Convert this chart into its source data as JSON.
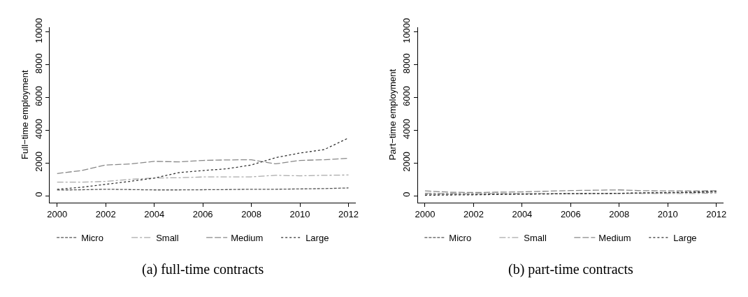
{
  "chart_data": [
    {
      "type": "line",
      "title": "(a) full-time contracts",
      "ylabel": "Full−time employment",
      "x": [
        2000,
        2001,
        2002,
        2003,
        2004,
        2005,
        2006,
        2007,
        2008,
        2009,
        2010,
        2011,
        2012
      ],
      "xlim": [
        1999.7,
        2012.3
      ],
      "ylim": [
        -400,
        10300
      ],
      "xticks": [
        2000,
        2002,
        2004,
        2006,
        2008,
        2010,
        2012
      ],
      "yticks": [
        0,
        2000,
        4000,
        6000,
        8000,
        10000
      ],
      "legend": "bottom",
      "marker": "none",
      "series": [
        {
          "name": "Micro",
          "color": "#555555",
          "line_style": "dashed",
          "values": [
            350,
            370,
            400,
            380,
            360,
            360,
            370,
            380,
            400,
            400,
            420,
            440,
            480
          ]
        },
        {
          "name": "Small",
          "color": "#aaaaaa",
          "line_style": "dashdot",
          "values": [
            830,
            830,
            880,
            1000,
            1090,
            1100,
            1150,
            1150,
            1160,
            1250,
            1220,
            1250,
            1270
          ]
        },
        {
          "name": "Medium",
          "color": "#888888",
          "line_style": "longdash",
          "values": [
            1360,
            1540,
            1880,
            1940,
            2100,
            2070,
            2160,
            2190,
            2200,
            1950,
            2160,
            2200,
            2290
          ]
        },
        {
          "name": "Large",
          "color": "#333333",
          "line_style": "dotted",
          "values": [
            400,
            520,
            700,
            880,
            1080,
            1410,
            1540,
            1650,
            1880,
            2330,
            2610,
            2820,
            3530
          ]
        }
      ]
    },
    {
      "type": "line",
      "title": "(b) part-time contracts",
      "ylabel": "Part−time employment",
      "x": [
        2000,
        2001,
        2002,
        2003,
        2004,
        2005,
        2006,
        2007,
        2008,
        2009,
        2010,
        2011,
        2012
      ],
      "xlim": [
        1999.7,
        2012.3
      ],
      "ylim": [
        -400,
        10300
      ],
      "xticks": [
        2000,
        2002,
        2004,
        2006,
        2008,
        2010,
        2012
      ],
      "yticks": [
        0,
        2000,
        4000,
        6000,
        8000,
        10000
      ],
      "legend": "bottom",
      "marker": "none",
      "series": [
        {
          "name": "Micro",
          "color": "#555555",
          "line_style": "dashed",
          "values": [
            100,
            100,
            100,
            110,
            110,
            120,
            130,
            140,
            150,
            170,
            180,
            200,
            230
          ]
        },
        {
          "name": "Small",
          "color": "#aaaaaa",
          "line_style": "dashdot",
          "values": [
            160,
            150,
            140,
            140,
            140,
            140,
            140,
            140,
            140,
            140,
            140,
            140,
            160
          ]
        },
        {
          "name": "Medium",
          "color": "#888888",
          "line_style": "longdash",
          "values": [
            300,
            220,
            200,
            220,
            240,
            280,
            320,
            340,
            360,
            310,
            300,
            300,
            310
          ]
        },
        {
          "name": "Large",
          "color": "#333333",
          "line_style": "dotted",
          "values": [
            30,
            50,
            60,
            80,
            100,
            110,
            130,
            140,
            150,
            180,
            200,
            230,
            270
          ]
        }
      ]
    }
  ]
}
